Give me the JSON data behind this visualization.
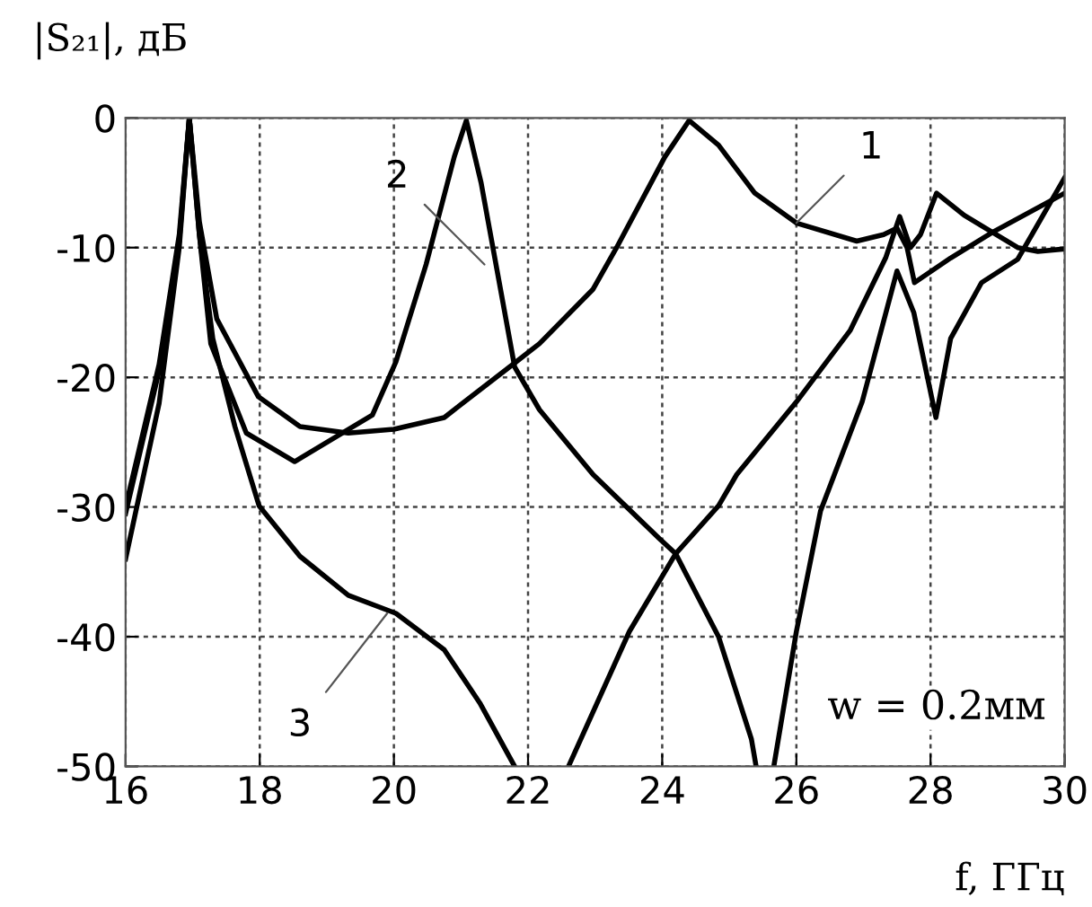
{
  "chart_data": {
    "type": "line",
    "xlabel": "f, ГГц",
    "ylabel": "|S₂₁|, дБ",
    "xlim": [
      16,
      30
    ],
    "ylim": [
      -50,
      0
    ],
    "xticks": [
      16,
      18,
      20,
      22,
      24,
      26,
      28,
      30
    ],
    "yticks": [
      -50,
      -40,
      -30,
      -20,
      -10,
      0
    ],
    "grid": true,
    "line_style": "solid",
    "marker": "none",
    "series": [
      {
        "color": "#000000",
        "x": [
          16,
          16.5,
          16.8,
          16.95,
          17.1,
          17.36,
          17.98,
          18.6,
          19.32,
          20.0,
          20.75,
          21.8,
          22.17,
          22.97,
          23.32,
          24.04,
          24.4,
          24.84,
          25.38,
          26.0,
          26.9,
          27.3,
          27.5,
          27.65,
          27.76,
          28.3,
          28.93,
          30
        ],
        "values": [
          -30,
          -19,
          -9,
          0,
          -8,
          -15.5,
          -21.5,
          -23.8,
          -24.3,
          -24.0,
          -23.1,
          -18.9,
          -17.4,
          -13.2,
          -10,
          -3,
          -0.2,
          -2.1,
          -5.8,
          -8.1,
          -9.5,
          -9.0,
          -8.5,
          -10,
          -12.7,
          -10.8,
          -8.8,
          -5.8
        ]
      },
      {
        "color": "#000000",
        "x": [
          16,
          16.5,
          16.8,
          16.95,
          17.1,
          17.27,
          17.8,
          18.52,
          19.68,
          20.03,
          20.48,
          20.9,
          21.08,
          21.3,
          21.8,
          22.17,
          22.97,
          23.95,
          24.2,
          24.84,
          25.33,
          25.4,
          25.5,
          25.67,
          26.0,
          26.36,
          26.98,
          27.5,
          27.75,
          28.08,
          28.3,
          28.76,
          29.3,
          30
        ],
        "values": [
          -34,
          -22,
          -10,
          0,
          -9,
          -17.4,
          -24.3,
          -26.5,
          -22.9,
          -18.8,
          -11.3,
          -3,
          -0.2,
          -5,
          -19.2,
          -22.5,
          -27.5,
          -32.4,
          -33.6,
          -40,
          -47.9,
          -50,
          null,
          -49.8,
          -39.6,
          -30.3,
          -21.9,
          -11.8,
          -15,
          -23.1,
          -17,
          -12.7,
          -10.9,
          -4.6
        ]
      },
      {
        "color": "#000000",
        "x": [
          16,
          16.5,
          16.8,
          16.95,
          17.1,
          17.3,
          17.63,
          17.99,
          18.6,
          19.32,
          20.03,
          20.75,
          21.28,
          21.8,
          22.2,
          22.62,
          23.51,
          24.2,
          24.84,
          25.11,
          26.0,
          26.8,
          27.33,
          27.54,
          27.7,
          27.85,
          28.09,
          28.5,
          29.3,
          29.6,
          30
        ],
        "values": [
          -30.5,
          -19.5,
          -9.5,
          0,
          -9,
          -17,
          -23.8,
          -29.9,
          -33.8,
          -36.8,
          -38.2,
          -41,
          -45.1,
          -50,
          null,
          -49.8,
          -39.6,
          -33.6,
          -29.9,
          -27.5,
          -21.9,
          -16.4,
          -10.8,
          -7.6,
          -10,
          -9,
          -5.8,
          -7.5,
          -10,
          -10.3,
          -10.1
        ]
      }
    ],
    "annotations": [
      {
        "text": "1",
        "x": 26.0,
        "y": -8.1
      },
      {
        "text": "2",
        "x": 21.35,
        "y": -11.3
      },
      {
        "text": "3",
        "x": 19.9,
        "y": -38.2
      },
      "w = 0.2мм"
    ]
  }
}
